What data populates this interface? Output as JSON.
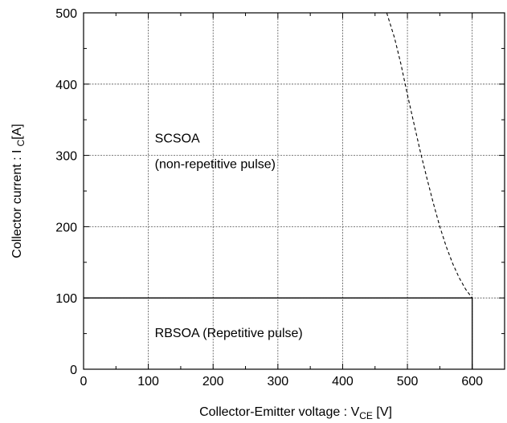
{
  "chart_data": {
    "type": "line",
    "xlabel_main": "Collector-Emitter voltage : V",
    "xlabel_sub": "CE",
    "xlabel_unit": " [V]",
    "ylabel_main": "Collector current : I",
    "ylabel_sub": "C",
    "ylabel_unit": "[A]",
    "xlim": [
      0,
      650
    ],
    "ylim": [
      0,
      500
    ],
    "x_ticks": [
      0,
      100,
      200,
      300,
      400,
      500,
      600
    ],
    "y_ticks": [
      0,
      100,
      200,
      300,
      400,
      500
    ],
    "grid": true,
    "series": [
      {
        "style": "dashed",
        "x": [
          468,
          480,
          490,
          500,
          510,
          520,
          530,
          540,
          550,
          560,
          570,
          580,
          590,
          600
        ],
        "y": [
          500,
          465,
          428,
          385,
          345,
          305,
          268,
          233,
          200,
          172,
          148,
          128,
          112,
          100
        ]
      },
      {
        "style": "solid",
        "x": [
          0,
          600,
          600
        ],
        "y": [
          100,
          100,
          0
        ]
      }
    ],
    "annotations": [
      {
        "id": "scsoa",
        "text": "SCSOA",
        "x": 110,
        "y": 318
      },
      {
        "id": "scsoa-sub",
        "text": "(non-repetitive pulse)",
        "x": 110,
        "y": 282
      },
      {
        "id": "rbsoa",
        "text": "RBSOA (Repetitive pulse)",
        "x": 110,
        "y": 45
      }
    ]
  }
}
